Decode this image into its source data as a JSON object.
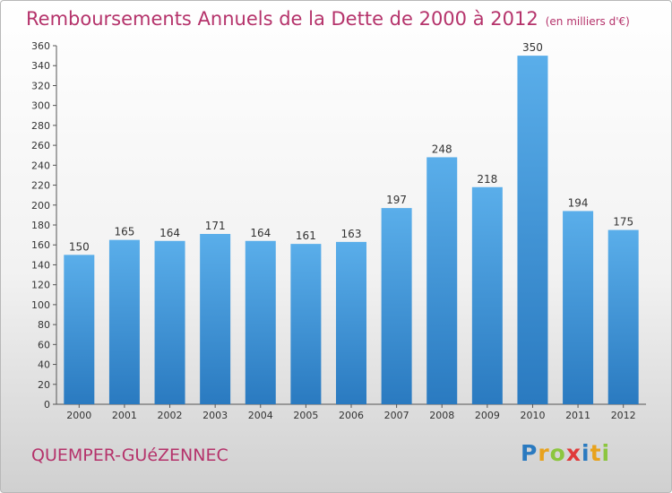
{
  "title": "Remboursements Annuels de la Dette de 2000 à 2012",
  "subtitle": "(en milliers d'€)",
  "commune": "QUEMPER-GUéZENNEC",
  "logo": "Proxiti",
  "colors": {
    "bar_top": "#5aaeea",
    "bar_bottom": "#2a7ac0",
    "title": "#b5336b"
  },
  "chart_data": {
    "type": "bar",
    "title": "Remboursements Annuels de la Dette de 2000 à 2012",
    "subtitle": "(en milliers d'€)",
    "categories": [
      "2000",
      "2001",
      "2002",
      "2003",
      "2004",
      "2005",
      "2006",
      "2007",
      "2008",
      "2009",
      "2010",
      "2011",
      "2012"
    ],
    "values": [
      150,
      165,
      164,
      171,
      164,
      161,
      163,
      197,
      248,
      218,
      350,
      194,
      175
    ],
    "ylim": [
      0,
      360
    ],
    "yticks": [
      0,
      20,
      40,
      60,
      80,
      100,
      120,
      140,
      160,
      180,
      200,
      220,
      240,
      260,
      280,
      300,
      320,
      340,
      360
    ],
    "grid": false
  }
}
